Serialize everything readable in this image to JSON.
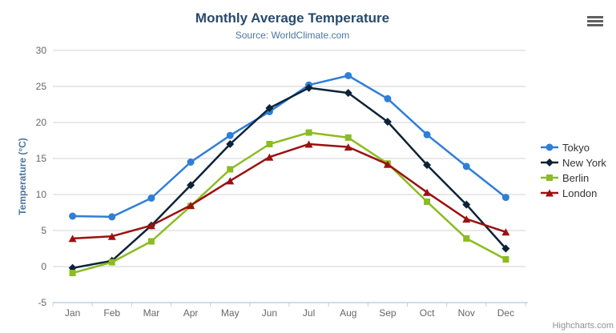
{
  "header": {
    "title": "Monthly Average Temperature",
    "subtitle": "Source: WorldClimate.com"
  },
  "toolbar": {
    "context_menu_icon": "hamburger-icon"
  },
  "credit": "Highcharts.com",
  "chart_data": {
    "type": "line",
    "title": "Monthly Average Temperature",
    "subtitle": "Source: WorldClimate.com",
    "categories": [
      "Jan",
      "Feb",
      "Mar",
      "Apr",
      "May",
      "Jun",
      "Jul",
      "Aug",
      "Sep",
      "Oct",
      "Nov",
      "Dec"
    ],
    "series": [
      {
        "name": "Tokyo",
        "color": "#2f7ed8",
        "marker": "circle",
        "values": [
          7.0,
          6.9,
          9.5,
          14.5,
          18.2,
          21.5,
          25.2,
          26.5,
          23.3,
          18.3,
          13.9,
          9.6
        ]
      },
      {
        "name": "New York",
        "color": "#0d233a",
        "marker": "diamond",
        "values": [
          -0.2,
          0.8,
          5.7,
          11.3,
          17.0,
          22.0,
          24.8,
          24.1,
          20.1,
          14.1,
          8.6,
          2.5
        ]
      },
      {
        "name": "Berlin",
        "color": "#8bbc21",
        "marker": "square",
        "values": [
          -0.9,
          0.6,
          3.5,
          8.4,
          13.5,
          17.0,
          18.6,
          17.9,
          14.3,
          9.0,
          3.9,
          1.0
        ]
      },
      {
        "name": "London",
        "color": "#9c1010",
        "marker": "triangle",
        "values": [
          3.9,
          4.2,
          5.7,
          8.5,
          11.9,
          15.2,
          17.0,
          16.6,
          14.2,
          10.3,
          6.6,
          4.8
        ]
      }
    ],
    "xlabel": "",
    "ylabel": "Temperature (°C)",
    "ylim": [
      -5,
      30
    ],
    "yticks": [
      -5,
      0,
      5,
      10,
      15,
      20,
      25,
      30
    ],
    "grid": true,
    "legend_position": "right",
    "colors": {
      "grid_line": "#d2d2d2",
      "axis_line": "#c0d0e0",
      "tick_label": "#666666",
      "axis_title": "#4d759e",
      "title": "#274b6d",
      "subtitle": "#4d759e",
      "legend_text": "#333333"
    }
  }
}
